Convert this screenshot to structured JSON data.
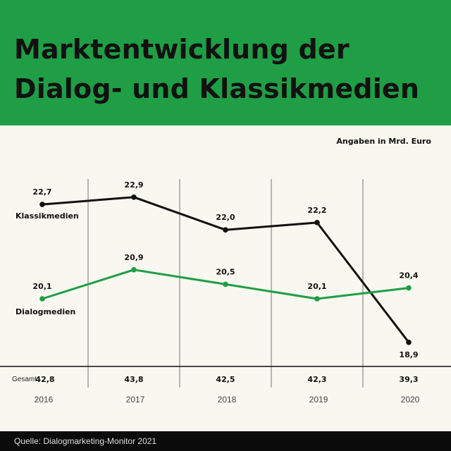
{
  "title_lines": [
    "Marktentwicklung der",
    "Dialog- und Klassikmedien"
  ],
  "unit_note": "Angaben in Mrd. Euro",
  "source": "Quelle: Dialogmarketing-Monitor 2021",
  "colors": {
    "header": "#1f9e45",
    "klassik": "#111111",
    "dialog": "#1f9e45"
  },
  "chart_data": {
    "type": "line",
    "categories": [
      "2016",
      "2017",
      "2018",
      "2019",
      "2020"
    ],
    "series": [
      {
        "name": "Klassikmedien",
        "values": [
          22.7,
          22.9,
          22.0,
          22.2,
          18.9
        ],
        "labels": [
          "22,7",
          "22,9",
          "22,0",
          "22,2",
          "18,9"
        ]
      },
      {
        "name": "Dialogmedien",
        "values": [
          20.1,
          20.9,
          20.5,
          20.1,
          20.4
        ],
        "labels": [
          "20,1",
          "20,9",
          "20,5",
          "20,1",
          "20,4"
        ]
      }
    ],
    "totals_label": "Gesamt",
    "totals": [
      "42,8",
      "43,8",
      "42,5",
      "42,3",
      "39,3"
    ],
    "grid": "vertical"
  }
}
